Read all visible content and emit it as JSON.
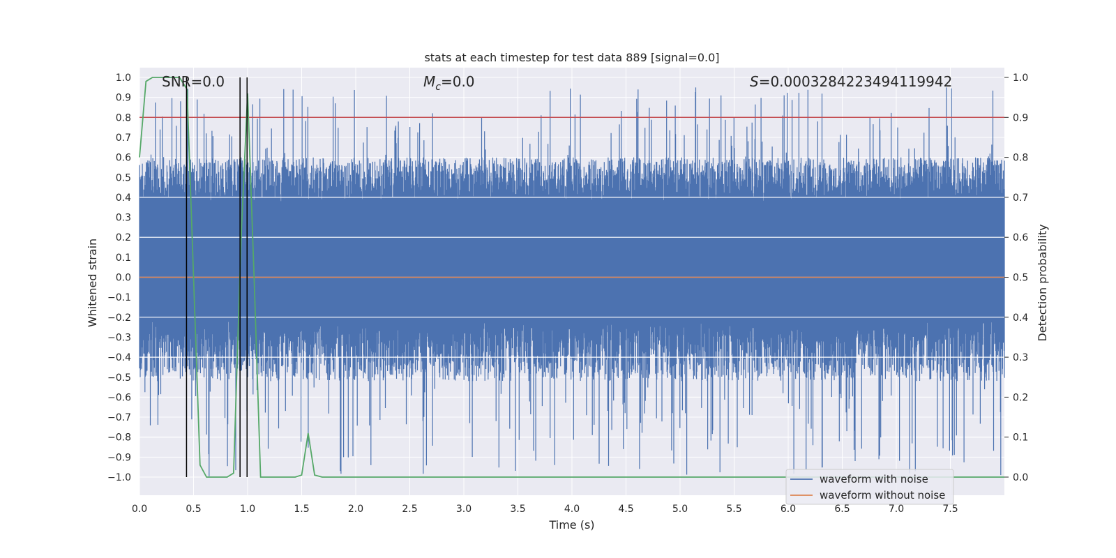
{
  "chart_data": {
    "type": "line",
    "title": "stats at each timestep for test data 889 [signal=0.0]",
    "xlabel": "Time (s)",
    "ylabel": "Whitened strain",
    "y2label": "Detection probability",
    "xlim": [
      0.0,
      8.0
    ],
    "ylim": [
      -1.1,
      1.05
    ],
    "y2lim": [
      -0.048,
      1.048
    ],
    "xticks": [
      "0.0",
      "0.5",
      "1.0",
      "1.5",
      "2.0",
      "2.5",
      "3.0",
      "3.5",
      "4.0",
      "4.5",
      "5.0",
      "5.5",
      "6.0",
      "6.5",
      "7.0",
      "7.5"
    ],
    "yticks": [
      "1.0",
      "0.9",
      "0.8",
      "0.7",
      "0.6",
      "0.5",
      "0.4",
      "0.3",
      "0.2",
      "0.1",
      "0.0",
      "−0.1",
      "−0.2",
      "−0.3",
      "−0.4",
      "−0.5",
      "−0.6",
      "−0.7",
      "−0.8",
      "−0.9",
      "−1.0"
    ],
    "y2ticks": [
      "1.0",
      "0.9",
      "0.8",
      "0.7",
      "0.6",
      "0.5",
      "0.4",
      "0.3",
      "0.2",
      "0.1",
      "0.0"
    ],
    "annotations": {
      "snr": "SNR=0.0",
      "mc": "=0.0",
      "mc_symbol": "M",
      "mc_sub": "c",
      "s": "=0.0003284223494119942",
      "s_symbol": "S"
    },
    "legend": {
      "position": "lower-right",
      "entries": [
        {
          "label": "waveform with noise",
          "color": "#4c72b0"
        },
        {
          "label": "waveform without noise",
          "color": "#dd8452"
        }
      ]
    },
    "series": [
      {
        "name": "waveform with noise",
        "color": "#4c72b0",
        "kind": "noise",
        "x_range": [
          0.0,
          8.0
        ],
        "core_band": [
          -0.22,
          0.38
        ],
        "peak_max": 0.95,
        "trough_min": -1.0
      },
      {
        "name": "waveform without noise",
        "color": "#dd8452",
        "kind": "line",
        "x": [
          0.0,
          8.0
        ],
        "y": [
          0.0,
          0.0
        ]
      },
      {
        "name": "detection probability",
        "color": "#55a868",
        "axis": "right",
        "x": [
          0.0,
          0.06,
          0.12,
          0.19,
          0.25,
          0.31,
          0.37,
          0.44,
          0.56,
          0.62,
          0.69,
          0.81,
          0.87,
          0.94,
          1.0,
          1.06,
          1.12,
          1.19,
          1.25,
          1.31,
          1.37,
          1.44,
          1.5,
          1.56,
          1.62,
          1.69,
          1.75,
          8.0
        ],
        "y": [
          0.8,
          0.99,
          1.0,
          1.0,
          1.0,
          1.0,
          1.0,
          0.97,
          0.03,
          0.0,
          0.0,
          0.0,
          0.01,
          0.6,
          0.96,
          0.5,
          0.0,
          0.0,
          0.0,
          0.0,
          0.0,
          0.0,
          0.005,
          0.11,
          0.005,
          0.0,
          0.0,
          0.0
        ]
      },
      {
        "name": "threshold",
        "color": "#c44e52",
        "axis": "right",
        "kind": "hline",
        "y": 0.9
      }
    ],
    "vlines": [
      0.435,
      0.93,
      0.995
    ],
    "vline_color": "#000000"
  }
}
